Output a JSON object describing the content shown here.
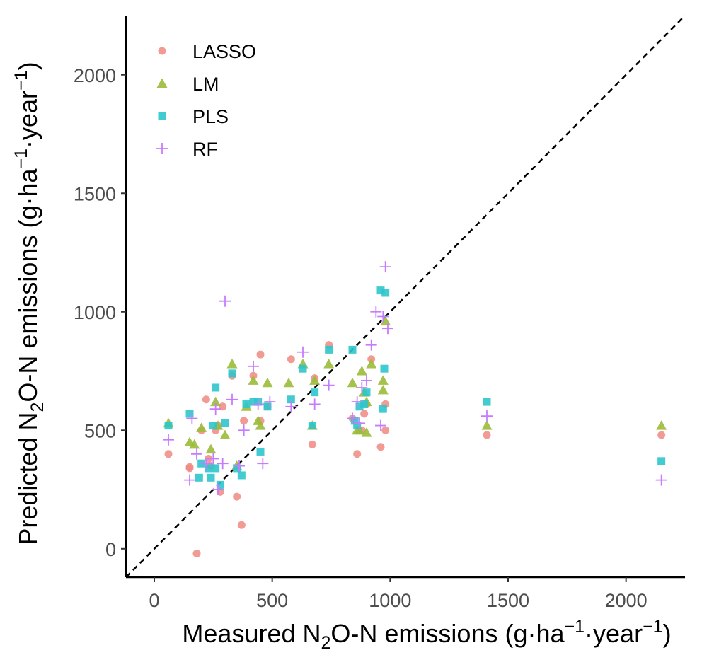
{
  "chart_data": {
    "type": "scatter",
    "xlabel_parts": [
      "Measured N",
      "2",
      "O-N emissions (g·ha",
      "−1",
      "·year",
      "−1",
      ")"
    ],
    "ylabel_parts": [
      "Predicted N",
      "2",
      "O-N emissions (g·ha",
      "−1",
      "·year",
      "−1",
      ")"
    ],
    "xlim": [
      -120,
      2250
    ],
    "ylim": [
      -120,
      2250
    ],
    "x_ticks": [
      0,
      500,
      1000,
      1500,
      2000
    ],
    "y_ticks": [
      0,
      500,
      1000,
      1500,
      2000
    ],
    "x_tick_labels": [
      "0",
      "500",
      "1000",
      "1500",
      "2000"
    ],
    "y_tick_labels": [
      "0",
      "500",
      "1000",
      "1500",
      "2000"
    ],
    "reference_line": {
      "style": "dashed",
      "slope": 1,
      "intercept": 0,
      "color": "#000000"
    },
    "grid": false,
    "legend_position": "top-left",
    "series": [
      {
        "name": "LASSO",
        "marker": "circle",
        "color": "#F08A82",
        "points": [
          [
            60,
            400
          ],
          [
            150,
            340
          ],
          [
            150,
            345
          ],
          [
            180,
            -20
          ],
          [
            200,
            500
          ],
          [
            220,
            630
          ],
          [
            230,
            380
          ],
          [
            240,
            350
          ],
          [
            260,
            500
          ],
          [
            270,
            520
          ],
          [
            280,
            240
          ],
          [
            290,
            600
          ],
          [
            330,
            730
          ],
          [
            350,
            220
          ],
          [
            370,
            100
          ],
          [
            380,
            540
          ],
          [
            420,
            730
          ],
          [
            450,
            820
          ],
          [
            450,
            540
          ],
          [
            480,
            600
          ],
          [
            580,
            800
          ],
          [
            670,
            440
          ],
          [
            680,
            720
          ],
          [
            740,
            860
          ],
          [
            840,
            550
          ],
          [
            860,
            400
          ],
          [
            880,
            500
          ],
          [
            890,
            570
          ],
          [
            900,
            610
          ],
          [
            920,
            800
          ],
          [
            960,
            430
          ],
          [
            980,
            610
          ],
          [
            980,
            500
          ],
          [
            1410,
            480
          ],
          [
            2150,
            480
          ]
        ]
      },
      {
        "name": "LM",
        "marker": "triangle",
        "color": "#9BBB38",
        "points": [
          [
            60,
            530
          ],
          [
            150,
            450
          ],
          [
            170,
            440
          ],
          [
            200,
            510
          ],
          [
            240,
            420
          ],
          [
            260,
            620
          ],
          [
            270,
            520
          ],
          [
            300,
            480
          ],
          [
            330,
            780
          ],
          [
            350,
            350
          ],
          [
            390,
            600
          ],
          [
            420,
            710
          ],
          [
            440,
            540
          ],
          [
            450,
            520
          ],
          [
            480,
            700
          ],
          [
            570,
            700
          ],
          [
            630,
            780
          ],
          [
            670,
            520
          ],
          [
            680,
            710
          ],
          [
            740,
            780
          ],
          [
            840,
            700
          ],
          [
            860,
            500
          ],
          [
            870,
            500
          ],
          [
            880,
            750
          ],
          [
            890,
            660
          ],
          [
            900,
            620
          ],
          [
            900,
            490
          ],
          [
            920,
            780
          ],
          [
            970,
            710
          ],
          [
            970,
            670
          ],
          [
            980,
            960
          ],
          [
            1410,
            520
          ],
          [
            2150,
            520
          ]
        ]
      },
      {
        "name": "PLS",
        "marker": "square",
        "color": "#2EC5CB",
        "points": [
          [
            60,
            520
          ],
          [
            150,
            570
          ],
          [
            190,
            300
          ],
          [
            200,
            360
          ],
          [
            230,
            340
          ],
          [
            240,
            300
          ],
          [
            250,
            520
          ],
          [
            260,
            680
          ],
          [
            260,
            340
          ],
          [
            280,
            270
          ],
          [
            300,
            530
          ],
          [
            330,
            740
          ],
          [
            350,
            340
          ],
          [
            370,
            310
          ],
          [
            390,
            610
          ],
          [
            420,
            620
          ],
          [
            440,
            620
          ],
          [
            450,
            410
          ],
          [
            480,
            600
          ],
          [
            580,
            630
          ],
          [
            630,
            760
          ],
          [
            670,
            520
          ],
          [
            680,
            660
          ],
          [
            740,
            840
          ],
          [
            840,
            840
          ],
          [
            850,
            540
          ],
          [
            860,
            520
          ],
          [
            870,
            600
          ],
          [
            890,
            610
          ],
          [
            900,
            660
          ],
          [
            960,
            1090
          ],
          [
            970,
            590
          ],
          [
            975,
            760
          ],
          [
            980,
            1080
          ],
          [
            1410,
            620
          ],
          [
            2150,
            370
          ]
        ]
      },
      {
        "name": "RF",
        "marker": "plus",
        "color": "#C77CFF",
        "points": [
          [
            60,
            460
          ],
          [
            150,
            290
          ],
          [
            160,
            550
          ],
          [
            180,
            400
          ],
          [
            220,
            360
          ],
          [
            250,
            380
          ],
          [
            260,
            590
          ],
          [
            270,
            250
          ],
          [
            290,
            360
          ],
          [
            300,
            1045
          ],
          [
            330,
            630
          ],
          [
            360,
            350
          ],
          [
            380,
            500
          ],
          [
            420,
            770
          ],
          [
            440,
            610
          ],
          [
            460,
            360
          ],
          [
            490,
            620
          ],
          [
            580,
            600
          ],
          [
            630,
            830
          ],
          [
            680,
            610
          ],
          [
            740,
            690
          ],
          [
            840,
            550
          ],
          [
            860,
            620
          ],
          [
            870,
            530
          ],
          [
            880,
            680
          ],
          [
            900,
            710
          ],
          [
            920,
            860
          ],
          [
            940,
            1000
          ],
          [
            960,
            520
          ],
          [
            970,
            980
          ],
          [
            980,
            1190
          ],
          [
            990,
            930
          ],
          [
            1410,
            560
          ],
          [
            2150,
            290
          ]
        ]
      }
    ]
  }
}
